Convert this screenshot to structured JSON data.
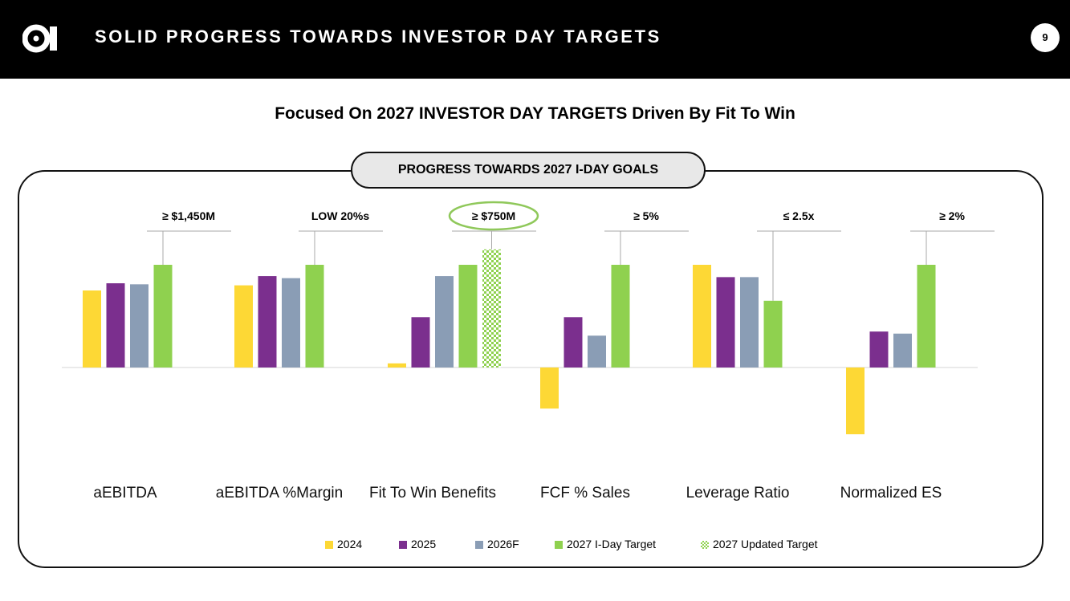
{
  "header": {
    "title": "SOLID PROGRESS TOWARDS INVESTOR DAY TARGETS",
    "page_number": "9",
    "logo_icon": "oi-logo-icon"
  },
  "subtitle": "Focused On 2027 INVESTOR DAY TARGETS Driven By Fit To Win",
  "panel": {
    "pill_label": "PROGRESS TOWARDS 2027 I-DAY GOALS"
  },
  "colors": {
    "2024": "#fdd835",
    "2025": "#7b2f8e",
    "2026F": "#8a9db5",
    "2027 I-Day Target": "#8fd14f",
    "2027 Updated Target": "#8fd14f",
    "highlight_circle": "#8fc85a"
  },
  "chart_data": {
    "type": "bar",
    "categories": [
      "aEBITDA",
      "aEBITDA %Margin",
      "Fit To Win Benefits",
      "FCF % Sales",
      "Leverage Ratio",
      "Normalized ES"
    ],
    "target_labels": [
      {
        "category": "aEBITDA",
        "symbol": "≥",
        "value": "$1,450M"
      },
      {
        "category": "aEBITDA %Margin",
        "symbol": "",
        "value": "LOW 20%s"
      },
      {
        "category": "Fit To Win Benefits",
        "symbol": "≥",
        "value": "$750M",
        "highlighted": true
      },
      {
        "category": "FCF % Sales",
        "symbol": "≥",
        "value": "5%"
      },
      {
        "category": "Leverage Ratio",
        "symbol": "≤",
        "value": "2.5x"
      },
      {
        "category": "Normalized ES",
        "symbol": "≥",
        "value": "2%"
      }
    ],
    "series": [
      {
        "name": "2024",
        "values": [
          75,
          80,
          4,
          -40,
          100,
          -65
        ]
      },
      {
        "name": "2025",
        "values": [
          82,
          89,
          49,
          49,
          88,
          35
        ]
      },
      {
        "name": "2026F",
        "values": [
          81,
          87,
          89,
          31,
          88,
          33
        ]
      },
      {
        "name": "2027 I-Day Target",
        "values": [
          100,
          100,
          100,
          100,
          65,
          100
        ]
      },
      {
        "name": "2027 Updated Target",
        "values": [
          null,
          null,
          115,
          null,
          null,
          null
        ]
      }
    ],
    "ylim": [
      -80,
      120
    ],
    "axis_note": "relative scale, no printed axis",
    "grid": false,
    "legend": "bottom"
  }
}
